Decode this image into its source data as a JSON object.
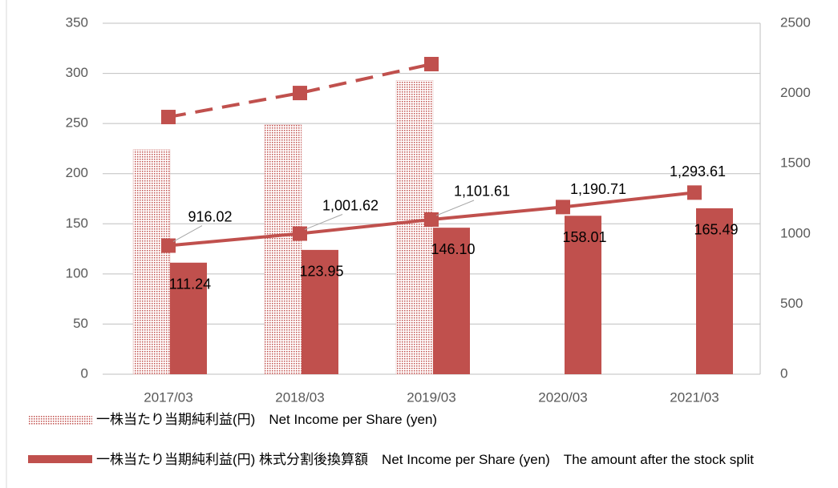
{
  "chart_data": {
    "type": "bar",
    "categories": [
      "2017/03",
      "2018/03",
      "2019/03",
      "2020/03",
      "2021/03"
    ],
    "series": [
      {
        "name": "一株当たり当期純利益(円)　Net Income per Share (yen)",
        "color": "#c0504d",
        "pattern": "dotted",
        "values": [
          224,
          249,
          293,
          null,
          null
        ]
      },
      {
        "name": "一株当たり当期純利益(円) 株式分割後換算額　Net Income per Share (yen)　The amount after the stock split",
        "color": "#c0504d",
        "values": [
          111.24,
          123.95,
          146.1,
          158.01,
          165.49
        ],
        "value_labels": [
          "111.24",
          "123.95",
          "146.10",
          "158.01",
          "165.49"
        ]
      },
      {
        "type": "line",
        "axis": "y2",
        "color": "#c0504d",
        "dashed": true,
        "values": [
          1832,
          2003,
          2209,
          null,
          null
        ]
      },
      {
        "type": "line",
        "axis": "y2",
        "color": "#c0504d",
        "values": [
          916.02,
          1001.62,
          1101.61,
          1190.71,
          1293.61
        ],
        "value_labels": [
          "916.02",
          "1,001.62",
          "1,101.61",
          "1,190.71",
          "1,293.61"
        ]
      }
    ],
    "ylim": [
      0,
      350
    ],
    "yticks": [
      0,
      50,
      100,
      150,
      200,
      250,
      300,
      350
    ],
    "y2lim": [
      0,
      2500
    ],
    "y2ticks": [
      0,
      500,
      1000,
      1500,
      2000,
      2500
    ],
    "grid": true
  }
}
